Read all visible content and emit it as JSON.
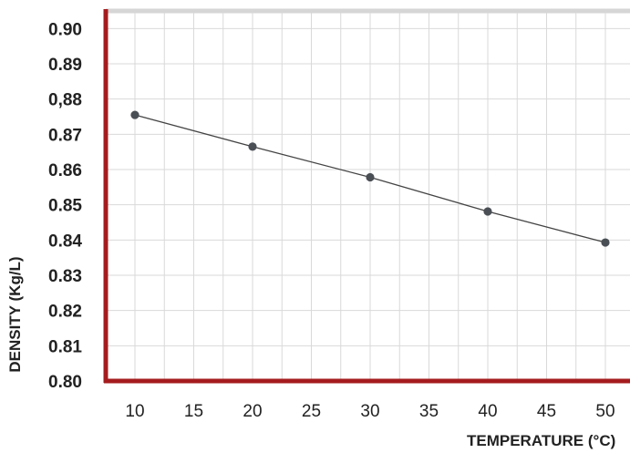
{
  "chart_data": {
    "type": "line",
    "title": "",
    "xlabel": "TEMPERATURE (°C)",
    "ylabel": "DENSITY (Kg/L)",
    "xlim": [
      7.5,
      50
    ],
    "ylim": [
      0.8,
      0.905
    ],
    "x_ticks": [
      "10",
      "15",
      "20",
      "25",
      "30",
      "35",
      "40",
      "45",
      "50"
    ],
    "x_tick_values": [
      10,
      15,
      20,
      25,
      30,
      35,
      40,
      45,
      50
    ],
    "y_ticks": [
      "0.80",
      "0.81",
      "0.82",
      "0.83",
      "0.84",
      "0.85",
      "0.86",
      "0.87",
      "0,88",
      "0.89",
      "0.90"
    ],
    "y_tick_values": [
      0.8,
      0.81,
      0.82,
      0.83,
      0.84,
      0.85,
      0.86,
      0.87,
      0.88,
      0.89,
      0.9
    ],
    "grid": true,
    "series": [
      {
        "x": [
          10,
          20,
          30,
          40,
          50
        ],
        "y": [
          0.8755,
          0.8665,
          0.8578,
          0.8481,
          0.8393
        ]
      }
    ],
    "colors": {
      "axis": "#a51c1e",
      "grid": "#d9d9d9",
      "line": "#444444",
      "marker": "#4a4f55",
      "top_border": "#d6d6d6"
    }
  }
}
